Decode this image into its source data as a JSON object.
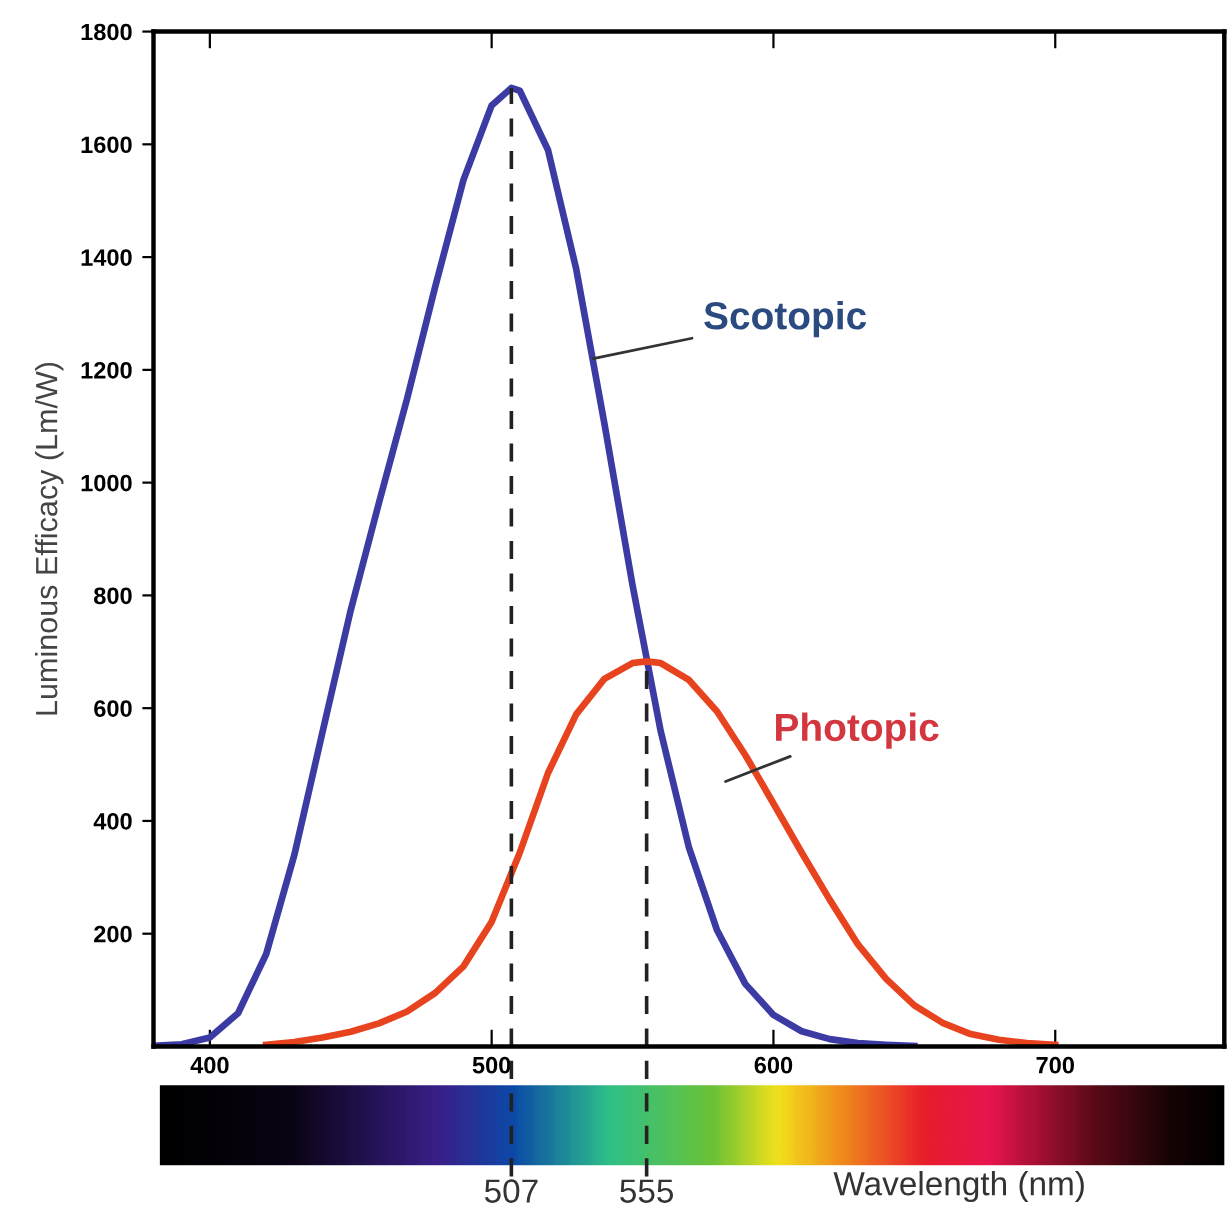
{
  "chart_data": {
    "type": "line",
    "xlabel": "Wavelength (nm)",
    "ylabel": "Luminous Efficacy (Lm/W)",
    "xlim": [
      380,
      760
    ],
    "ylim": [
      0,
      1800
    ],
    "xticks": [
      400,
      500,
      600,
      700
    ],
    "yticks": [
      {
        "value": 200,
        "label": "200"
      },
      400,
      600,
      800,
      1000,
      1200,
      1400,
      1600,
      1800
    ],
    "grid": false,
    "legend": false,
    "marker": "none",
    "line_style": "solid",
    "series": [
      {
        "name": "Scotopic",
        "color": "#3b3ba3",
        "x": [
          380,
          390,
          400,
          410,
          420,
          430,
          440,
          450,
          460,
          470,
          480,
          490,
          500,
          507,
          510,
          520,
          530,
          540,
          550,
          560,
          570,
          580,
          590,
          600,
          610,
          620,
          630,
          640,
          650
        ],
        "values": [
          1,
          4,
          16,
          59,
          164,
          340,
          558,
          774,
          964,
          1149,
          1348,
          1537,
          1669,
          1700,
          1695,
          1590,
          1379,
          1105,
          818,
          559,
          353,
          206,
          111,
          56,
          27,
          13,
          6,
          3,
          1
        ]
      },
      {
        "name": "Photopic",
        "color": "#e8431f",
        "x": [
          420,
          430,
          440,
          450,
          460,
          470,
          480,
          490,
          500,
          510,
          520,
          530,
          540,
          550,
          555,
          560,
          570,
          580,
          590,
          600,
          610,
          620,
          630,
          640,
          650,
          660,
          670,
          680,
          690,
          700
        ],
        "values": [
          3,
          8,
          16,
          26,
          41,
          62,
          95,
          142,
          221,
          344,
          485,
          589,
          652,
          680,
          683,
          680,
          650,
          594,
          517,
          431,
          344,
          260,
          181,
          120,
          73,
          42,
          22,
          12,
          6,
          3
        ]
      }
    ],
    "ref_lines": [
      {
        "axis": "x",
        "value": 507,
        "label": "507",
        "color": "#222222",
        "line_style": "dashed"
      },
      {
        "axis": "x",
        "value": 555,
        "label": "555",
        "color": "#222222",
        "line_style": "dashed"
      }
    ]
  }
}
